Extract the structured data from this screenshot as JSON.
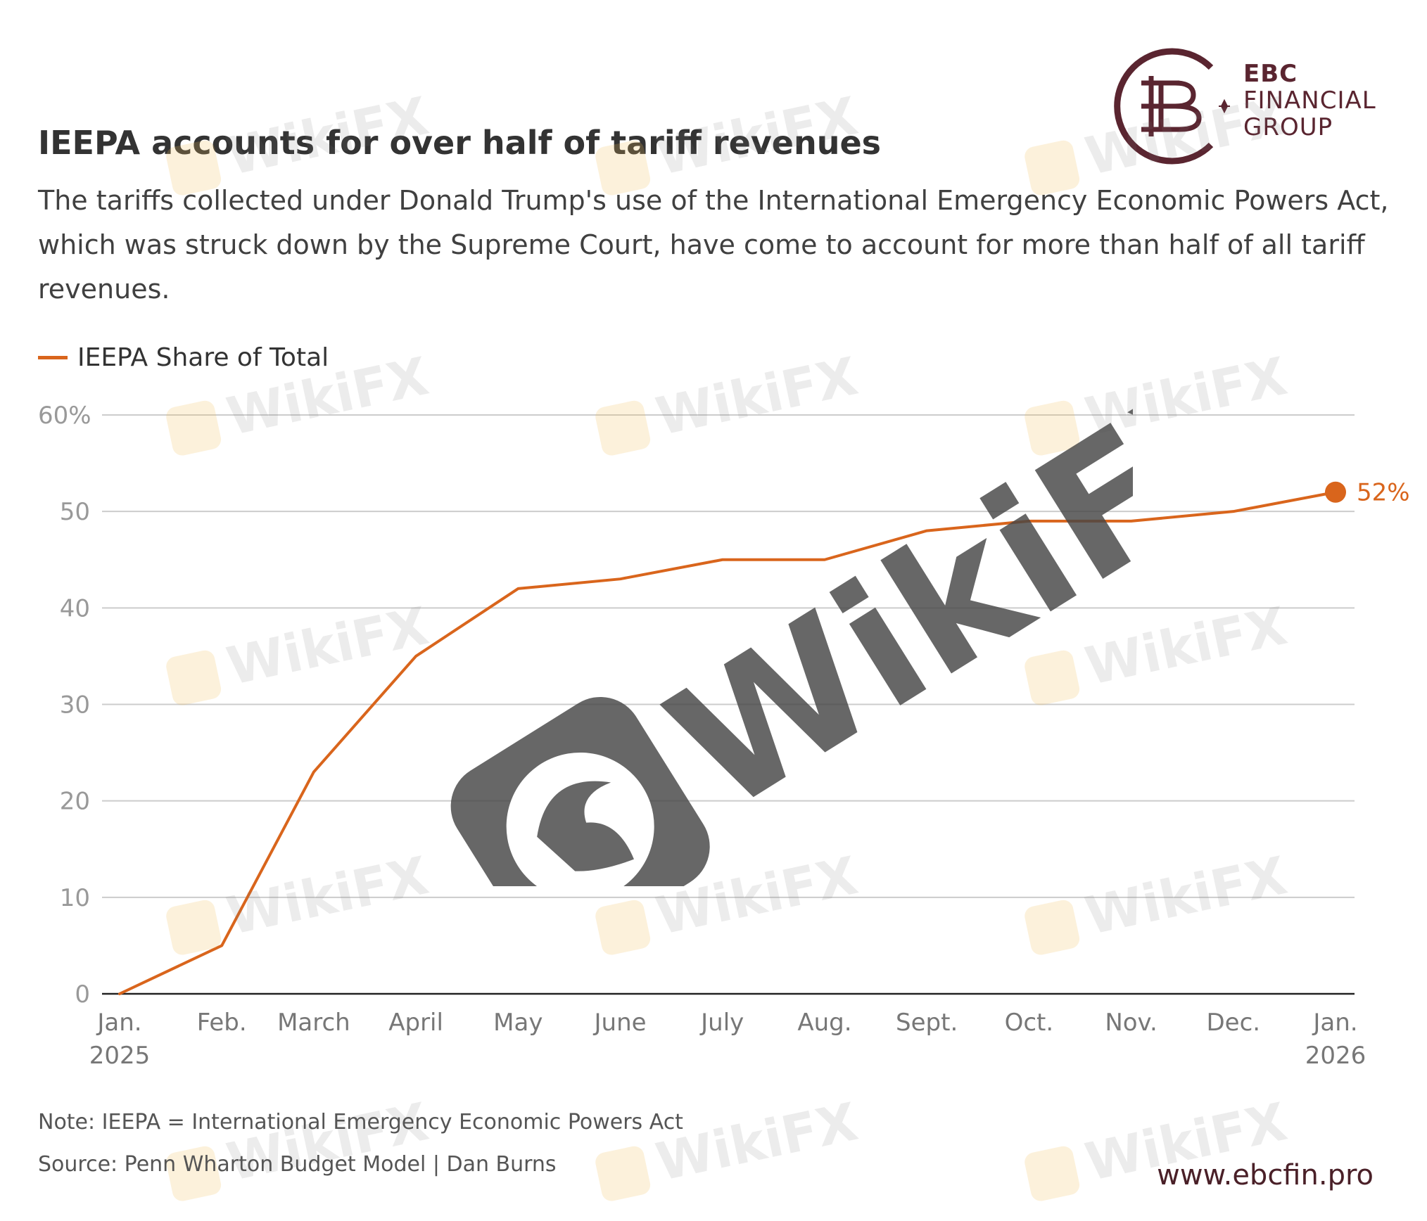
{
  "brand": {
    "line1": "EBC",
    "line2": "FINANCIAL",
    "line3": "GROUP",
    "url": "www.ebcfin.pro",
    "color": "#5a2530"
  },
  "watermark": {
    "text": "WikiFX"
  },
  "chart_data": {
    "type": "line",
    "title": "IEEPA accounts for over half of tariff revenues",
    "subtitle": "The tariffs collected under Donald Trump's use of the International Emergency Economic Powers Act, which was struck down by the Supreme Court, have come to account for more than half of all tariff revenues.",
    "categories": [
      "Jan. 2025",
      "Feb.",
      "March",
      "April",
      "May",
      "June",
      "July",
      "Aug.",
      "Sept.",
      "Oct.",
      "Nov.",
      "Dec.",
      "Jan. 2026"
    ],
    "x_tick_labels": [
      [
        "Jan.",
        "2025"
      ],
      [
        "Feb."
      ],
      [
        "March"
      ],
      [
        "April"
      ],
      [
        "May"
      ],
      [
        "June"
      ],
      [
        "July"
      ],
      [
        "Aug."
      ],
      [
        "Sept."
      ],
      [
        "Oct."
      ],
      [
        "Nov."
      ],
      [
        "Dec."
      ],
      [
        "Jan.",
        "2026"
      ]
    ],
    "series": [
      {
        "name": "IEEPA Share of Total",
        "color": "#d9651c",
        "x": [
          0,
          1.0,
          1.9,
          2.9,
          3.9,
          4.9,
          5.9,
          6.9,
          7.9,
          8.9,
          9.9,
          10.9,
          11.9
        ],
        "values": [
          0,
          5,
          23,
          35,
          42,
          43,
          45,
          45,
          48,
          49,
          49,
          50,
          52
        ]
      }
    ],
    "y_ticks": [
      {
        "value": 0,
        "label": "0"
      },
      {
        "value": 10,
        "label": "10"
      },
      {
        "value": 20,
        "label": "20"
      },
      {
        "value": 30,
        "label": "30"
      },
      {
        "value": 40,
        "label": "40"
      },
      {
        "value": 50,
        "label": "50"
      },
      {
        "value": 60,
        "label": "60%"
      }
    ],
    "ylim": [
      0,
      60
    ],
    "xlim": [
      0,
      11.9
    ],
    "grid": true,
    "end_label": "52%",
    "note": "Note: IEEPA = International Emergency Economic Powers Act",
    "source": "Source: Penn Wharton Budget Model | Dan Burns"
  }
}
